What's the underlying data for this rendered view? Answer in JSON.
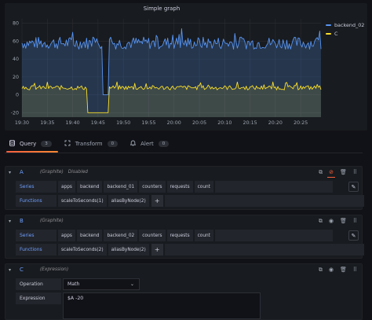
{
  "panel": {
    "title": "Simple graph"
  },
  "chart_data": {
    "type": "line",
    "title": "Simple graph",
    "x_ticks": [
      "19:30",
      "19:35",
      "19:40",
      "19:45",
      "19:50",
      "19:55",
      "20:00",
      "20:05",
      "20:10",
      "20:15",
      "20:20",
      "20:25"
    ],
    "y_ticks": [
      "80",
      "60",
      "40",
      "20",
      "0",
      "-20"
    ],
    "ylim": [
      -25,
      85
    ],
    "xlim": [
      "19:30",
      "20:29"
    ],
    "grid": true,
    "legend_position": "right",
    "series": [
      {
        "name": "backend_02",
        "color": "#5794f2",
        "mean": 58,
        "noise": 7,
        "dip": {
          "from": "19:46",
          "to": "19:47",
          "value": 0
        }
      },
      {
        "name": "C",
        "color": "#fade2a",
        "mean": 8,
        "noise": 2.5,
        "dip": {
          "from": "19:43",
          "to": "19:47",
          "value": -20
        }
      }
    ]
  },
  "tabs": [
    {
      "label": "Query",
      "count": "3",
      "icon": "database-icon"
    },
    {
      "label": "Transform",
      "count": "0",
      "icon": "transform-icon"
    },
    {
      "label": "Alert",
      "count": "0",
      "icon": "bell-icon"
    }
  ],
  "queries": {
    "a": {
      "name": "A",
      "datasource": "(Graphite)",
      "status": "Disabled",
      "series_label": "Series",
      "functions_label": "Functions",
      "series": [
        "apps",
        "backend",
        "backend_01",
        "counters",
        "requests",
        "count"
      ],
      "functions": [
        "scaleToSeconds(1)",
        "aliasByNode(2)"
      ]
    },
    "b": {
      "name": "B",
      "datasource": "(Graphite)",
      "series_label": "Series",
      "functions_label": "Functions",
      "series": [
        "apps",
        "backend",
        "backend_02",
        "counters",
        "requests",
        "count"
      ],
      "functions": [
        "scaleToSeconds(2)",
        "aliasByNode(2)"
      ]
    },
    "c": {
      "name": "C",
      "datasource": "(Expression)",
      "operation_label": "Operation",
      "operation_value": "Math",
      "expression_label": "Expression",
      "expression_value": "$A -20"
    }
  },
  "add_symbol": "+",
  "chevron": "⌄",
  "colors": {
    "accent": "#f55f3e",
    "link": "#6e9fff",
    "blue_series": "#5794f2",
    "yellow_series": "#fade2a"
  }
}
